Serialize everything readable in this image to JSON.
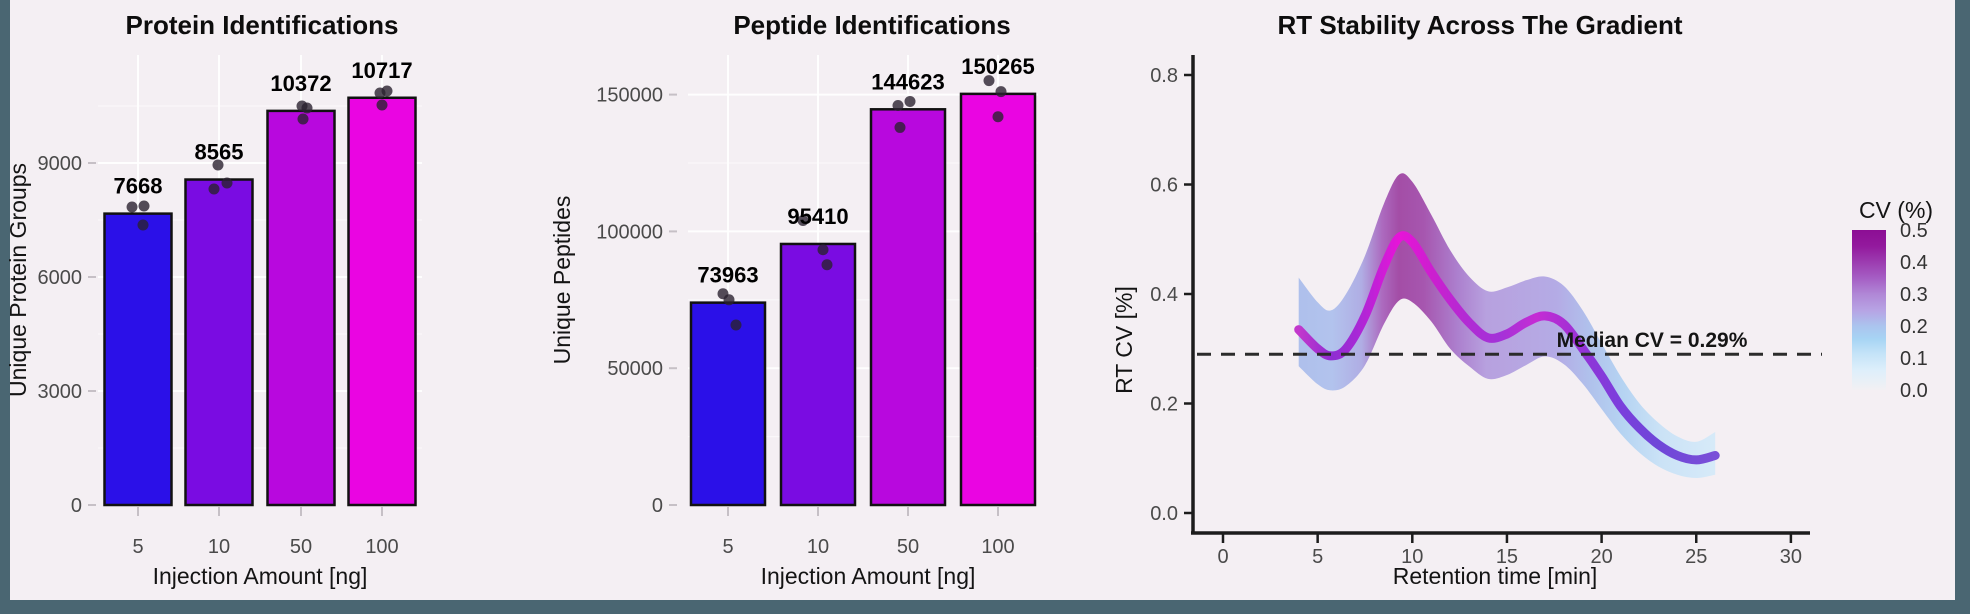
{
  "page": {
    "background": "#f4eff3",
    "frame_color": "#4a6672"
  },
  "chart_data": [
    {
      "type": "bar",
      "id": "protein",
      "title": "Protein Identifications",
      "xlabel": "Injection Amount [ng]",
      "ylabel": "Unique Protein Groups",
      "categories": [
        "5",
        "10",
        "50",
        "100"
      ],
      "values": [
        7668,
        8565,
        10372,
        10717
      ],
      "value_labels": [
        "7668",
        "8565",
        "10372",
        "10717"
      ],
      "bar_colors": [
        "#2b10e8",
        "#7a0ce2",
        "#b808de",
        "#ea05e2"
      ],
      "yticks": [
        0,
        3000,
        6000,
        9000
      ],
      "ytick_labels": [
        "0",
        "3000",
        "6000",
        "9000"
      ],
      "ylim": [
        0,
        11800
      ],
      "grid": true,
      "replicates": [
        [
          7843,
          7869,
          7369
        ],
        [
          8949,
          8316,
          8474
        ],
        [
          10500,
          10447,
          10158
        ],
        [
          10842,
          10895,
          10526
        ]
      ]
    },
    {
      "type": "bar",
      "id": "peptide",
      "title": "Peptide Identifications",
      "xlabel": "Injection Amount [ng]",
      "ylabel": "Unique Peptides",
      "categories": [
        "5",
        "10",
        "50",
        "100"
      ],
      "values": [
        73963,
        95410,
        144623,
        150265
      ],
      "value_labels": [
        "73963",
        "95410",
        "144623",
        "150265"
      ],
      "bar_colors": [
        "#2b10e8",
        "#7a0ce2",
        "#b808de",
        "#ea05e2"
      ],
      "yticks": [
        0,
        50000,
        100000,
        150000
      ],
      "ytick_labels": [
        "0",
        "50000",
        "100000",
        "150000"
      ],
      "ylim": [
        0,
        164500
      ],
      "grid": true,
      "replicates": [
        [
          77200,
          75000,
          65800
        ],
        [
          104000,
          93300,
          87800
        ],
        [
          146000,
          147500,
          138000
        ],
        [
          155100,
          151100,
          141900
        ]
      ]
    },
    {
      "type": "line+ribbon",
      "id": "rt-stability",
      "title": "RT Stability Across The Gradient",
      "xlabel": "Retention time [min]",
      "ylabel": "RT CV [%]",
      "xticks": [
        0,
        5,
        10,
        15,
        20,
        25,
        30
      ],
      "xtick_labels": [
        "0",
        "5",
        "10",
        "15",
        "20",
        "25",
        "30"
      ],
      "yticks": [
        0.0,
        0.2,
        0.4,
        0.6,
        0.8
      ],
      "ytick_labels": [
        "0.0",
        "0.2",
        "0.4",
        "0.6",
        "0.8"
      ],
      "xlim": [
        0,
        32
      ],
      "ylim": [
        0,
        0.84
      ],
      "grid": false,
      "median_value": 0.29,
      "median_label": "Median CV = 0.29%",
      "x": [
        4,
        5,
        5.7,
        6.5,
        7.5,
        8.5,
        9.3,
        10,
        11,
        12,
        13,
        14,
        15,
        16,
        17,
        18,
        19,
        20,
        21,
        22,
        23,
        24,
        25,
        26
      ],
      "y": [
        0.335,
        0.3,
        0.287,
        0.3,
        0.36,
        0.45,
        0.503,
        0.495,
        0.44,
        0.39,
        0.348,
        0.32,
        0.327,
        0.348,
        0.36,
        0.345,
        0.3,
        0.25,
        0.195,
        0.155,
        0.125,
        0.105,
        0.097,
        0.105
      ],
      "upper": [
        0.43,
        0.385,
        0.37,
        0.4,
        0.47,
        0.565,
        0.618,
        0.605,
        0.545,
        0.48,
        0.432,
        0.405,
        0.412,
        0.425,
        0.432,
        0.415,
        0.37,
        0.31,
        0.25,
        0.2,
        0.165,
        0.14,
        0.13,
        0.148
      ],
      "lower": [
        0.268,
        0.235,
        0.224,
        0.232,
        0.27,
        0.345,
        0.388,
        0.385,
        0.35,
        0.3,
        0.268,
        0.245,
        0.252,
        0.27,
        0.286,
        0.272,
        0.236,
        0.19,
        0.145,
        0.11,
        0.085,
        0.07,
        0.064,
        0.07
      ],
      "legend": {
        "title": "CV (%)",
        "labels": [
          "0.5",
          "0.4",
          "0.3",
          "0.2",
          "0.1",
          "0.0"
        ]
      },
      "line_gradient": [
        [
          0,
          "#c238cc"
        ],
        [
          0.08,
          "#8f2ed2"
        ],
        [
          0.14,
          "#a828d6"
        ],
        [
          0.24,
          "#e714d8"
        ],
        [
          0.32,
          "#cc1fcf"
        ],
        [
          0.41,
          "#b02cd4"
        ],
        [
          0.48,
          "#a332d8"
        ],
        [
          0.57,
          "#c52cd4"
        ],
        [
          0.64,
          "#a92fd4"
        ],
        [
          0.7,
          "#8d36d8"
        ],
        [
          0.77,
          "#7b3fdc"
        ],
        [
          0.86,
          "#6f46d8"
        ],
        [
          1,
          "#7a4fd8"
        ]
      ],
      "ribbon_gradient": [
        [
          0,
          "#9db4ea"
        ],
        [
          0.08,
          "#a2b8ec"
        ],
        [
          0.15,
          "#9f9de0"
        ],
        [
          0.2,
          "#9a49b2"
        ],
        [
          0.24,
          "#8f2593"
        ],
        [
          0.3,
          "#93309e"
        ],
        [
          0.38,
          "#9a63c4"
        ],
        [
          0.45,
          "#a88dda"
        ],
        [
          0.55,
          "#a795de"
        ],
        [
          0.62,
          "#a49ae2"
        ],
        [
          0.7,
          "#9fb6ea"
        ],
        [
          0.78,
          "#a6cdf2"
        ],
        [
          0.87,
          "#c0dff7"
        ],
        [
          1,
          "#cfe9fa"
        ]
      ],
      "colorbar_gradient": [
        [
          0,
          "#8c0e94"
        ],
        [
          0.1,
          "#93199d"
        ],
        [
          0.2,
          "#9c3cb0"
        ],
        [
          0.3,
          "#a55ec4"
        ],
        [
          0.4,
          "#b087d6"
        ],
        [
          0.5,
          "#b7a3e4"
        ],
        [
          0.6,
          "#abc4ee"
        ],
        [
          0.68,
          "#a7d4f4"
        ],
        [
          0.78,
          "#c6e4f8"
        ],
        [
          0.88,
          "#deeffb"
        ],
        [
          1,
          "#f2f0f3"
        ]
      ]
    }
  ]
}
